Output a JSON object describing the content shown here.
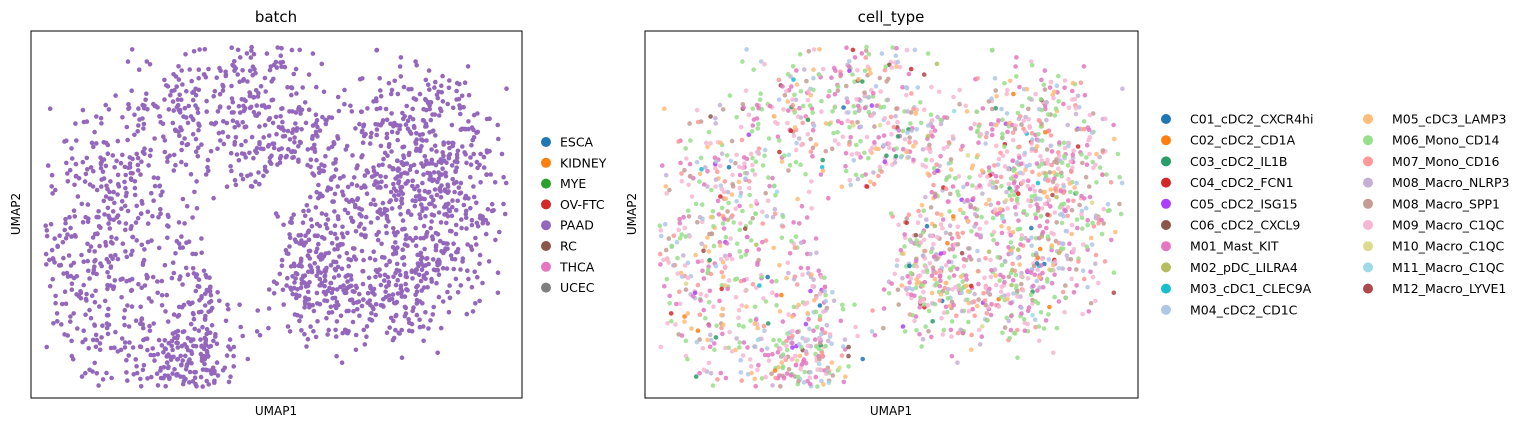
{
  "chart_data": [
    {
      "type": "scatter",
      "title": "batch",
      "xlabel": "UMAP1",
      "ylabel": "UMAP2",
      "xticks": [],
      "yticks": [],
      "grid": false,
      "legend": {
        "placement": "right",
        "columns": 1,
        "entries": [
          {
            "label": "ESCA",
            "color": "#1f77b4"
          },
          {
            "label": "KIDNEY",
            "color": "#ff7f0e"
          },
          {
            "label": "MYE",
            "color": "#2ca02c"
          },
          {
            "label": "OV-FTC",
            "color": "#d62728"
          },
          {
            "label": "PAAD",
            "color": "#9467bd"
          },
          {
            "label": "RC",
            "color": "#8c564b"
          },
          {
            "label": "THCA",
            "color": "#e377c2"
          },
          {
            "label": "UCEC",
            "color": "#7f7f7f"
          }
        ]
      },
      "visible_series": [
        "PAAD"
      ],
      "point_color": "#9467bd"
    },
    {
      "type": "scatter",
      "title": "cell_type",
      "xlabel": "UMAP1",
      "ylabel": "UMAP2",
      "xticks": [],
      "yticks": [],
      "grid": false,
      "legend": {
        "placement": "right",
        "columns": 2,
        "entries": [
          {
            "label": "C01_cDC2_CXCR4hi",
            "color": "#1f77b4"
          },
          {
            "label": "C02_cDC2_CD1A",
            "color": "#ff7f0e"
          },
          {
            "label": "C03_cDC2_IL1B",
            "color": "#279e68"
          },
          {
            "label": "C04_cDC2_FCN1",
            "color": "#d62728"
          },
          {
            "label": "C05_cDC2_ISG15",
            "color": "#aa40fc"
          },
          {
            "label": "C06_cDC2_CXCL9",
            "color": "#8c564b"
          },
          {
            "label": "M01_Mast_KIT",
            "color": "#e377c2"
          },
          {
            "label": "M02_pDC_LILRA4",
            "color": "#b5bd61"
          },
          {
            "label": "M03_cDC1_CLEC9A",
            "color": "#17becf"
          },
          {
            "label": "M04_cDC2_CD1C",
            "color": "#aec7e8"
          },
          {
            "label": "M05_cDC3_LAMP3",
            "color": "#ffbb78"
          },
          {
            "label": "M06_Mono_CD14",
            "color": "#98df8a"
          },
          {
            "label": "M07_Mono_CD16",
            "color": "#ff9896"
          },
          {
            "label": "M08_Macro_NLRP3",
            "color": "#c5b0d5"
          },
          {
            "label": "M08_Macro_SPP1",
            "color": "#c49c94"
          },
          {
            "label": "M09_Macro_C1QC",
            "color": "#f7b6d2"
          },
          {
            "label": "M10_Macro_C1QC",
            "color": "#dbdb8d"
          },
          {
            "label": "M11_Macro_C1QC",
            "color": "#9edae5"
          },
          {
            "label": "M12_Macro_LYVE1",
            "color": "#ad494a"
          }
        ]
      },
      "dominant_series": [
        "M09_Macro_C1QC",
        "M01_Mast_KIT",
        "M06_Mono_CD14",
        "M04_cDC2_CD1C",
        "M07_Mono_CD16",
        "M08_Macro_SPP1",
        "M08_Macro_NLRP3",
        "M05_cDC3_LAMP3"
      ]
    }
  ]
}
